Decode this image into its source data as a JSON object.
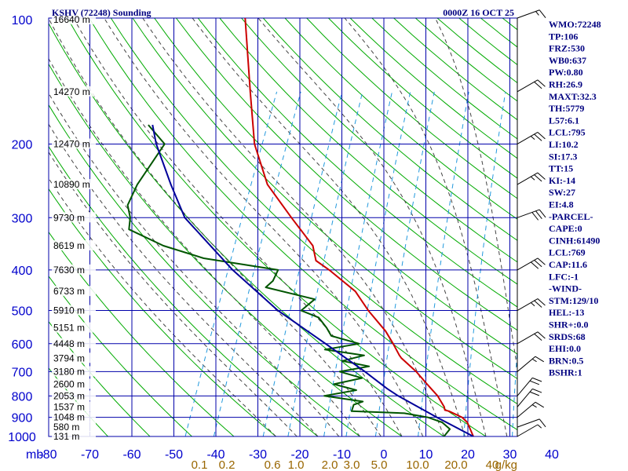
{
  "chart_data": {
    "type": "skew-t log-p sounding",
    "title": "KSHV (72248) Sounding",
    "datetime": "0000Z 16 OCT 25",
    "pressure_unit": "mb",
    "mixing_ratio_unit": "g/kg",
    "pressure_ticks": [
      {
        "p": 100,
        "label": "100"
      },
      {
        "p": 200,
        "label": "200"
      },
      {
        "p": 300,
        "label": "300"
      },
      {
        "p": 400,
        "label": "400"
      },
      {
        "p": 500,
        "label": "500"
      },
      {
        "p": 600,
        "label": "600"
      },
      {
        "p": 700,
        "label": "700"
      },
      {
        "p": 800,
        "label": "800"
      },
      {
        "p": 900,
        "label": "900"
      },
      {
        "p": 1000,
        "label": "1000"
      }
    ],
    "temperature_ticks": [
      {
        "t": -80,
        "label": "-80"
      },
      {
        "t": -70,
        "label": "-70"
      },
      {
        "t": -60,
        "label": "-60"
      },
      {
        "t": -50,
        "label": "-50"
      },
      {
        "t": -40,
        "label": "-40"
      },
      {
        "t": -30,
        "label": "-30"
      },
      {
        "t": -20,
        "label": "-20"
      },
      {
        "t": -10,
        "label": "-10"
      },
      {
        "t": 0,
        "label": "0"
      },
      {
        "t": 10,
        "label": "10"
      },
      {
        "t": 20,
        "label": "20"
      },
      {
        "t": 30,
        "label": "30"
      },
      {
        "t": 40,
        "label": "40"
      }
    ],
    "height_labels": [
      {
        "p": 100,
        "label": "16640 m"
      },
      {
        "p": 150,
        "label": "14270 m"
      },
      {
        "p": 200,
        "label": "12470 m"
      },
      {
        "p": 250,
        "label": "10890 m"
      },
      {
        "p": 300,
        "label": "9730 m"
      },
      {
        "p": 350,
        "label": "8619 m"
      },
      {
        "p": 400,
        "label": "7630 m"
      },
      {
        "p": 450,
        "label": "6733 m"
      },
      {
        "p": 500,
        "label": "5910 m"
      },
      {
        "p": 550,
        "label": "5151 m"
      },
      {
        "p": 600,
        "label": "4448 m"
      },
      {
        "p": 650,
        "label": "3794 m"
      },
      {
        "p": 700,
        "label": "3180 m"
      },
      {
        "p": 750,
        "label": "2600 m"
      },
      {
        "p": 800,
        "label": "2053 m"
      },
      {
        "p": 850,
        "label": "1537 m"
      },
      {
        "p": 900,
        "label": "1048 m"
      },
      {
        "p": 950,
        "label": "580 m"
      },
      {
        "p": 1000,
        "label": "131 m"
      }
    ],
    "mixing_ratio_lines": [
      {
        "w": 0.1,
        "label": "0.1"
      },
      {
        "w": 0.2,
        "label": "0.2"
      },
      {
        "w": 0.6,
        "label": "0.6"
      },
      {
        "w": 1.0,
        "label": "1.0"
      },
      {
        "w": 2.0,
        "label": "2.0"
      },
      {
        "w": 3.0,
        "label": "3.0"
      },
      {
        "w": 5.0,
        "label": "5.0"
      },
      {
        "w": 10.0,
        "label": "10.0"
      },
      {
        "w": 20.0,
        "label": "20.0"
      },
      {
        "w": 40.0,
        "label": "40"
      }
    ],
    "mixing_ratio_axis_suffix": "g/kg",
    "series": [
      {
        "name": "temperature",
        "color": "#cc0000",
        "points": [
          {
            "p": 1000,
            "t": 27.0
          },
          {
            "p": 925,
            "t": 24.0
          },
          {
            "p": 900,
            "t": 22.2
          },
          {
            "p": 870,
            "t": 18.4
          },
          {
            "p": 865,
            "t": 17.3
          },
          {
            "p": 850,
            "t": 16.8
          },
          {
            "p": 800,
            "t": 14.0
          },
          {
            "p": 750,
            "t": 10.2
          },
          {
            "p": 700,
            "t": 6.2
          },
          {
            "p": 650,
            "t": 1.2
          },
          {
            "p": 640,
            "t": 0.4
          },
          {
            "p": 600,
            "t": -2.4
          },
          {
            "p": 560,
            "t": -5.6
          },
          {
            "p": 500,
            "t": -12.0
          },
          {
            "p": 450,
            "t": -17.2
          },
          {
            "p": 410,
            "t": -24.0
          },
          {
            "p": 400,
            "t": -25.8
          },
          {
            "p": 380,
            "t": -30.0
          },
          {
            "p": 350,
            "t": -32.4
          },
          {
            "p": 300,
            "t": -40.6
          },
          {
            "p": 250,
            "t": -50.0
          },
          {
            "p": 200,
            "t": -57.6
          },
          {
            "p": 150,
            "t": -64.4
          },
          {
            "p": 100,
            "t": -73.8
          }
        ]
      },
      {
        "name": "dewpoint",
        "color": "#005500",
        "points": [
          {
            "p": 1000,
            "t": 20.0
          },
          {
            "p": 960,
            "t": 20.6
          },
          {
            "p": 925,
            "t": 18.0
          },
          {
            "p": 900,
            "t": 14.0
          },
          {
            "p": 880,
            "t": 8.0
          },
          {
            "p": 870,
            "t": -4.8
          },
          {
            "p": 840,
            "t": -5.0
          },
          {
            "p": 825,
            "t": -3.2
          },
          {
            "p": 800,
            "t": -13.0
          },
          {
            "p": 775,
            "t": -6.0
          },
          {
            "p": 750,
            "t": -12.0
          },
          {
            "p": 725,
            "t": -6.0
          },
          {
            "p": 700,
            "t": -12.0
          },
          {
            "p": 680,
            "t": -5.6
          },
          {
            "p": 660,
            "t": -12.6
          },
          {
            "p": 640,
            "t": -8.0
          },
          {
            "p": 620,
            "t": -18.0
          },
          {
            "p": 600,
            "t": -10.5
          },
          {
            "p": 575,
            "t": -18.0
          },
          {
            "p": 550,
            "t": -20.0
          },
          {
            "p": 520,
            "t": -23.0
          },
          {
            "p": 500,
            "t": -28.0
          },
          {
            "p": 470,
            "t": -26.0
          },
          {
            "p": 440,
            "t": -39.0
          },
          {
            "p": 425,
            "t": -38.0
          },
          {
            "p": 400,
            "t": -38.0
          },
          {
            "p": 375,
            "t": -57.0
          },
          {
            "p": 350,
            "t": -68.0
          },
          {
            "p": 320,
            "t": -78.0
          },
          {
            "p": 300,
            "t": -79.0
          },
          {
            "p": 280,
            "t": -81.0
          },
          {
            "p": 260,
            "t": -81.0
          },
          {
            "p": 250,
            "t": -81.0
          },
          {
            "p": 200,
            "t": -79.0
          },
          {
            "p": 180,
            "t": -85.0
          }
        ]
      },
      {
        "name": "parcel",
        "color": "#000099",
        "points": [
          {
            "p": 1000,
            "t": 27.0
          },
          {
            "p": 900,
            "t": 16.2
          },
          {
            "p": 800,
            "t": 4.6
          },
          {
            "p": 769,
            "t": 1.2
          },
          {
            "p": 700,
            "t": -6.0
          },
          {
            "p": 600,
            "t": -18.5
          },
          {
            "p": 500,
            "t": -33.5
          },
          {
            "p": 400,
            "t": -48.8
          },
          {
            "p": 300,
            "t": -66.0
          },
          {
            "p": 250,
            "t": -73.0
          },
          {
            "p": 200,
            "t": -81.0
          },
          {
            "p": 180,
            "t": -84.0
          }
        ]
      }
    ],
    "wind_barbs": [
      {
        "p": 100,
        "dir": 70,
        "spd": 15
      },
      {
        "p": 150,
        "dir": 60,
        "spd": 20
      },
      {
        "p": 200,
        "dir": 60,
        "spd": 25
      },
      {
        "p": 250,
        "dir": 60,
        "spd": 25
      },
      {
        "p": 300,
        "dir": 70,
        "spd": 30
      },
      {
        "p": 400,
        "dir": 60,
        "spd": 30
      },
      {
        "p": 500,
        "dir": 60,
        "spd": 25
      },
      {
        "p": 600,
        "dir": 60,
        "spd": 20
      },
      {
        "p": 700,
        "dir": 50,
        "spd": 15
      },
      {
        "p": 800,
        "dir": 40,
        "spd": 20
      },
      {
        "p": 850,
        "dir": 40,
        "spd": 20
      },
      {
        "p": 900,
        "dir": 50,
        "spd": 15
      },
      {
        "p": 950,
        "dir": 70,
        "spd": 10
      },
      {
        "p": 1000,
        "dir": 60,
        "spd": 5
      }
    ],
    "indices": [
      "WMO:72248",
      "TP:106",
      "FRZ:530",
      "WB0:637",
      "PW:0.80",
      "RH:26.9",
      "MAXT:32.3",
      "TH:5779",
      "L57:6.1",
      "LCL:795",
      "LI:10.2",
      "SI:17.3",
      "TT:15",
      "KI:-14",
      "SW:27",
      "EI:4.8",
      "-PARCEL-",
      "CAPE:0",
      "CINH:61490",
      "LCL:769",
      "CAP:11.6",
      "LFC:-1",
      "-WIND-",
      "STM:129/10",
      "HEL:-13",
      "SHR+:0.0",
      "SRDS:68",
      "EHI:0.0",
      "BRN:0.5",
      "BSHR:1"
    ]
  },
  "colors": {
    "grid": "#0000aa",
    "dry_adiabat": "#00aa00",
    "moist_adiabat": "#444444",
    "mixing_ratio": "#2299dd",
    "title_text": "#000080",
    "index_text": "#000080",
    "mixing_label": "#996600"
  }
}
